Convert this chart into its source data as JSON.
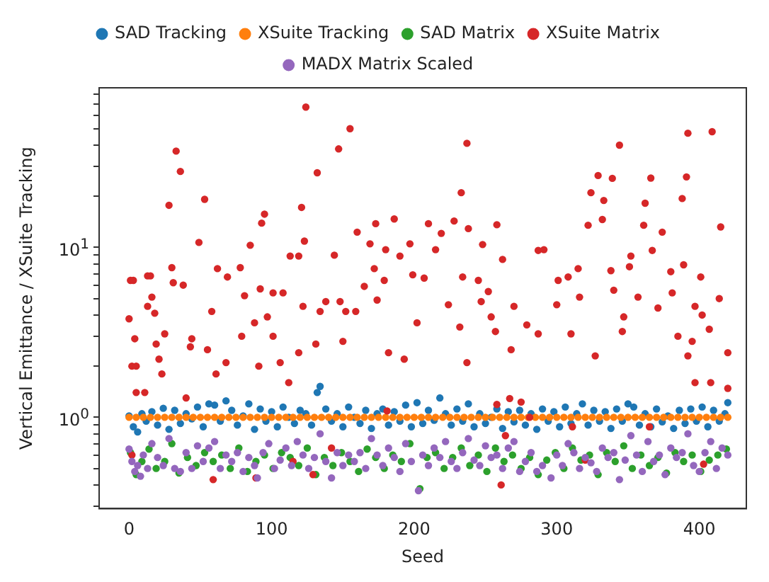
{
  "chart_data": {
    "type": "scatter",
    "xlabel": "Seed",
    "ylabel": "Vertical Emittance / XSuite Tracking",
    "log": "y",
    "grid": false,
    "legend": "top",
    "marker": "circle",
    "xlim": [
      -21,
      433
    ],
    "xticks": [
      0,
      100,
      200,
      300,
      400
    ],
    "ylim": [
      0.29,
      87
    ],
    "yticks": [
      {
        "value": 0.3,
        "label": null
      },
      {
        "value": 0.4,
        "label": null
      },
      {
        "value": 0.5,
        "label": null
      },
      {
        "value": 0.6,
        "label": null
      },
      {
        "value": 0.7,
        "label": null
      },
      {
        "value": 0.8,
        "label": null
      },
      {
        "value": 0.9,
        "label": null
      },
      {
        "value": 1,
        "label": "10$^{0}$"
      },
      {
        "value": 2,
        "label": null
      },
      {
        "value": 3,
        "label": null
      },
      {
        "value": 4,
        "label": null
      },
      {
        "value": 5,
        "label": null
      },
      {
        "value": 6,
        "label": null
      },
      {
        "value": 7,
        "label": null
      },
      {
        "value": 8,
        "label": null
      },
      {
        "value": 9,
        "label": null
      },
      {
        "value": 10,
        "label": "10$^{1}$"
      },
      {
        "value": 20,
        "label": null
      },
      {
        "value": 30,
        "label": null
      },
      {
        "value": 40,
        "label": null
      },
      {
        "value": 50,
        "label": null
      },
      {
        "value": 60,
        "label": null
      },
      {
        "value": 70,
        "label": null
      },
      {
        "value": 80,
        "label": null
      }
    ],
    "series": [
      {
        "name": "SAD Tracking",
        "color": "#1f77b4",
        "x": [
          0,
          3,
          6,
          9,
          12,
          16,
          20,
          24,
          28,
          32,
          36,
          40,
          44,
          48,
          52,
          56,
          60,
          64,
          68,
          72,
          76,
          80,
          84,
          88,
          92,
          96,
          100,
          104,
          108,
          112,
          116,
          120,
          124,
          128,
          132,
          134,
          138,
          142,
          146,
          150,
          154,
          158,
          162,
          166,
          170,
          174,
          178,
          182,
          186,
          190,
          194,
          198,
          202,
          206,
          210,
          214,
          218,
          222,
          226,
          230,
          234,
          238,
          242,
          246,
          250,
          254,
          258,
          262,
          266,
          270,
          274,
          278,
          282,
          286,
          290,
          294,
          298,
          302,
          306,
          310,
          314,
          318,
          322,
          326,
          330,
          334,
          338,
          342,
          346,
          350,
          354,
          358,
          362,
          366,
          370,
          374,
          378,
          382,
          386,
          390,
          394,
          398,
          402,
          406,
          410,
          414,
          418,
          420
        ],
        "values": [
          1.02,
          0.88,
          0.82,
          1.05,
          0.95,
          1.08,
          0.9,
          1.13,
          0.85,
          1.1,
          0.92,
          1.05,
          0.98,
          1.15,
          0.88,
          1.2,
          1.18,
          0.95,
          1.25,
          1.1,
          0.9,
          1.02,
          1.2,
          0.85,
          1.12,
          0.95,
          1.08,
          0.88,
          1.15,
          1.0,
          0.92,
          1.1,
          1.05,
          0.9,
          1.4,
          1.52,
          1.12,
          0.95,
          1.05,
          0.88,
          1.15,
          1.0,
          0.92,
          1.1,
          0.86,
          1.05,
          1.12,
          0.9,
          1.08,
          0.95,
          1.18,
          0.88,
          1.22,
          0.92,
          1.1,
          0.96,
          1.3,
          1.05,
          0.9,
          1.12,
          0.95,
          1.2,
          0.88,
          1.05,
          0.92,
          1.0,
          1.12,
          0.86,
          1.08,
          0.94,
          1.1,
          0.9,
          1.05,
          0.85,
          1.12,
          0.95,
          1.08,
          0.88,
          1.15,
          0.92,
          1.05,
          1.2,
          0.9,
          1.1,
          0.95,
          1.08,
          0.86,
          1.12,
          0.95,
          1.2,
          1.15,
          0.9,
          1.05,
          0.88,
          1.12,
          0.94,
          1.02,
          0.86,
          1.1,
          0.92,
          1.12,
          0.95,
          1.15,
          0.88,
          1.1,
          0.95,
          1.05,
          1.22
        ]
      },
      {
        "name": "XSuite Tracking",
        "color": "#ff7f0e",
        "x": [
          0,
          5,
          10,
          15,
          20,
          25,
          30,
          35,
          40,
          45,
          50,
          55,
          60,
          65,
          70,
          75,
          80,
          85,
          90,
          95,
          100,
          105,
          110,
          115,
          120,
          125,
          130,
          135,
          140,
          145,
          150,
          155,
          160,
          165,
          170,
          175,
          180,
          185,
          190,
          195,
          200,
          205,
          210,
          215,
          220,
          225,
          230,
          235,
          240,
          245,
          250,
          255,
          260,
          265,
          270,
          275,
          280,
          285,
          290,
          295,
          300,
          305,
          310,
          315,
          320,
          325,
          330,
          335,
          340,
          345,
          350,
          355,
          360,
          365,
          370,
          375,
          380,
          385,
          390,
          395,
          400,
          405,
          410,
          415,
          420
        ],
        "values": [
          1,
          1,
          1,
          1,
          1,
          1,
          1,
          1,
          1,
          1,
          1,
          1,
          1,
          1,
          1,
          1,
          1,
          1,
          1,
          1,
          1,
          1,
          1,
          1,
          1,
          1,
          1,
          1,
          1,
          1,
          1,
          1,
          1,
          1,
          1,
          1,
          1,
          1,
          1,
          1,
          1,
          1,
          1,
          1,
          1,
          1,
          1,
          1,
          1,
          1,
          1,
          1,
          1,
          1,
          1,
          1,
          1,
          1,
          1,
          1,
          1,
          1,
          1,
          1,
          1,
          1,
          1,
          1,
          1,
          1,
          1,
          1,
          1,
          1,
          1,
          1,
          1,
          1,
          1,
          1,
          1,
          1,
          1,
          1,
          1
        ]
      },
      {
        "name": "SAD Matrix",
        "color": "#2ca02c",
        "x": [
          1,
          5,
          9,
          14,
          19,
          25,
          30,
          35,
          41,
          47,
          53,
          59,
          65,
          71,
          77,
          83,
          89,
          95,
          101,
          107,
          113,
          119,
          125,
          131,
          137,
          143,
          149,
          155,
          161,
          167,
          173,
          179,
          185,
          191,
          197,
          204,
          209,
          215,
          221,
          227,
          233,
          239,
          245,
          251,
          257,
          263,
          269,
          275,
          281,
          287,
          293,
          299,
          305,
          311,
          317,
          323,
          329,
          335,
          341,
          347,
          353,
          359,
          365,
          371,
          377,
          383,
          389,
          395,
          401,
          407,
          413,
          419
        ],
        "values": [
          0.62,
          0.46,
          0.55,
          0.65,
          0.5,
          0.55,
          0.7,
          0.47,
          0.58,
          0.52,
          0.62,
          0.55,
          0.6,
          0.5,
          0.66,
          0.48,
          0.55,
          0.6,
          0.5,
          0.62,
          0.58,
          0.52,
          0.66,
          0.46,
          0.58,
          0.52,
          0.62,
          0.55,
          0.48,
          0.65,
          0.58,
          0.5,
          0.6,
          0.55,
          0.7,
          0.38,
          0.58,
          0.62,
          0.5,
          0.58,
          0.66,
          0.52,
          0.6,
          0.48,
          0.66,
          0.55,
          0.6,
          0.5,
          0.58,
          0.46,
          0.56,
          0.62,
          0.5,
          0.66,
          0.56,
          0.6,
          0.46,
          0.62,
          0.55,
          0.68,
          0.5,
          0.6,
          0.52,
          0.58,
          0.47,
          0.62,
          0.55,
          0.6,
          0.48,
          0.56,
          0.6,
          0.65
        ]
      },
      {
        "name": "XSuite Matrix",
        "color": "#d62728",
        "x": [
          0,
          1,
          3,
          4,
          2,
          5,
          5,
          11,
          13,
          15,
          13,
          16,
          18,
          19,
          21,
          25,
          23,
          28,
          30,
          31,
          33,
          36,
          38,
          40,
          43,
          44,
          49,
          53,
          55,
          62,
          58,
          61,
          69,
          68,
          78,
          81,
          79,
          85,
          88,
          91,
          92,
          93,
          95,
          97,
          101,
          101,
          106,
          108,
          112,
          113,
          119,
          119,
          121,
          124,
          132,
          147,
          155,
          237,
          233,
          123,
          122,
          131,
          134,
          138,
          144,
          148,
          152,
          150,
          159,
          160,
          165,
          169,
          172,
          174,
          173,
          179,
          180,
          186,
          190,
          182,
          193,
          197,
          199,
          202,
          207,
          210,
          215,
          219,
          224,
          228,
          232,
          234,
          237,
          238,
          248,
          245,
          247,
          252,
          254,
          257,
          262,
          258,
          268,
          270,
          279,
          287,
          291,
          287,
          301,
          300,
          308,
          310,
          315,
          316,
          322,
          324,
          329,
          333,
          332,
          327,
          344,
          339,
          338,
          340,
          347,
          346,
          351,
          352,
          357,
          362,
          361,
          366,
          367,
          374,
          371,
          380,
          381,
          388,
          391,
          392,
          389,
          385,
          392,
          395,
          401,
          402,
          397,
          407,
          409,
          414,
          415,
          420,
          397,
          408,
          261,
          89,
          129,
          142,
          311,
          365,
          181,
          281,
          258,
          267,
          275,
          420,
          403,
          2,
          320,
          264,
          59,
          115
        ],
        "values": [
          3.8,
          6.4,
          6.4,
          2.9,
          2.0,
          2.0,
          1.4,
          1.4,
          6.8,
          6.8,
          4.5,
          5.1,
          4.1,
          2.7,
          2.2,
          3.1,
          1.8,
          17.7,
          7.6,
          6.2,
          36.9,
          28,
          6.0,
          1.3,
          2.6,
          2.9,
          10.7,
          19.2,
          2.5,
          7.5,
          4.2,
          1.8,
          6.7,
          2.1,
          7.6,
          5.2,
          3.0,
          10.3,
          3.6,
          2.0,
          5.7,
          13.9,
          15.7,
          3.9,
          5.4,
          3.0,
          2.1,
          5.4,
          1.6,
          8.9,
          8.9,
          2.4,
          17.2,
          67,
          27.5,
          38,
          50,
          41,
          21,
          10.9,
          4.5,
          2.7,
          4.2,
          4.8,
          9.0,
          4.8,
          4.2,
          2.8,
          4.2,
          12.3,
          5.9,
          10.5,
          7.5,
          4.9,
          13.8,
          6.4,
          9.7,
          14.7,
          8.9,
          2.4,
          2.2,
          10.5,
          6.9,
          3.6,
          6.6,
          13.8,
          9.7,
          12.1,
          4.6,
          14.3,
          3.4,
          6.7,
          2.1,
          12.9,
          10.4,
          6.4,
          4.8,
          5.5,
          3.9,
          3.2,
          8.5,
          13.6,
          2.5,
          4.5,
          3.5,
          9.6,
          9.7,
          3.1,
          6.4,
          4.6,
          6.7,
          3.1,
          7.5,
          5.1,
          13.5,
          21,
          26.5,
          18.9,
          14.6,
          2.3,
          40,
          25.5,
          7.3,
          5.6,
          3.9,
          3.2,
          7.7,
          8.9,
          5.1,
          18.2,
          13.5,
          25.6,
          9.6,
          12.3,
          4.4,
          7.2,
          5.4,
          19.4,
          26,
          47,
          7.9,
          3.0,
          2.3,
          2.8,
          6.7,
          4.0,
          4.5,
          3.3,
          48,
          5.0,
          13.2,
          2.4,
          1.6,
          1.6,
          0.4,
          0.44,
          0.46,
          0.66,
          0.88,
          0.88,
          1.09,
          1.0,
          1.19,
          1.29,
          1.23,
          1.48,
          0.53,
          0.6,
          0.56,
          0.78,
          0.43,
          0.55
        ]
      },
      {
        "name": "MADX Matrix Scaled",
        "color": "#9467bd",
        "x": [
          0,
          2,
          4,
          6,
          8,
          10,
          13,
          16,
          20,
          24,
          28,
          32,
          36,
          40,
          44,
          48,
          52,
          56,
          60,
          64,
          68,
          72,
          76,
          80,
          84,
          88,
          90,
          94,
          98,
          102,
          106,
          110,
          114,
          118,
          122,
          126,
          130,
          134,
          138,
          142,
          146,
          150,
          154,
          158,
          162,
          166,
          170,
          174,
          178,
          182,
          186,
          190,
          194,
          198,
          203,
          206,
          210,
          214,
          218,
          222,
          226,
          230,
          234,
          238,
          242,
          246,
          250,
          254,
          258,
          262,
          266,
          270,
          274,
          278,
          282,
          286,
          290,
          296,
          300,
          304,
          308,
          312,
          316,
          320,
          324,
          328,
          332,
          336,
          340,
          344,
          348,
          352,
          356,
          360,
          364,
          368,
          372,
          376,
          380,
          384,
          388,
          392,
          396,
          400,
          404,
          408,
          412,
          416,
          420
        ],
        "values": [
          0.65,
          0.55,
          0.48,
          0.52,
          0.45,
          0.6,
          0.5,
          0.7,
          0.58,
          0.52,
          0.75,
          0.5,
          0.48,
          0.62,
          0.5,
          0.68,
          0.55,
          0.66,
          0.72,
          0.5,
          0.6,
          0.55,
          0.62,
          0.48,
          0.58,
          0.52,
          0.44,
          0.62,
          0.7,
          0.5,
          0.56,
          0.66,
          0.52,
          0.72,
          0.6,
          0.5,
          0.58,
          0.8,
          0.55,
          0.44,
          0.62,
          0.52,
          0.6,
          0.55,
          0.62,
          0.5,
          0.75,
          0.6,
          0.52,
          0.66,
          0.58,
          0.48,
          0.7,
          0.55,
          0.37,
          0.6,
          0.52,
          0.66,
          0.58,
          0.72,
          0.55,
          0.5,
          0.62,
          0.75,
          0.56,
          0.52,
          0.68,
          0.58,
          0.6,
          0.5,
          0.66,
          0.72,
          0.48,
          0.55,
          0.62,
          0.48,
          0.52,
          0.44,
          0.6,
          0.52,
          0.7,
          0.62,
          0.5,
          0.58,
          0.54,
          0.48,
          0.66,
          0.58,
          0.62,
          0.43,
          0.56,
          0.78,
          0.6,
          0.48,
          0.72,
          0.55,
          0.6,
          0.46,
          0.66,
          0.58,
          0.62,
          0.8,
          0.52,
          0.48,
          0.62,
          0.72,
          0.5,
          0.66,
          0.6
        ]
      }
    ]
  }
}
